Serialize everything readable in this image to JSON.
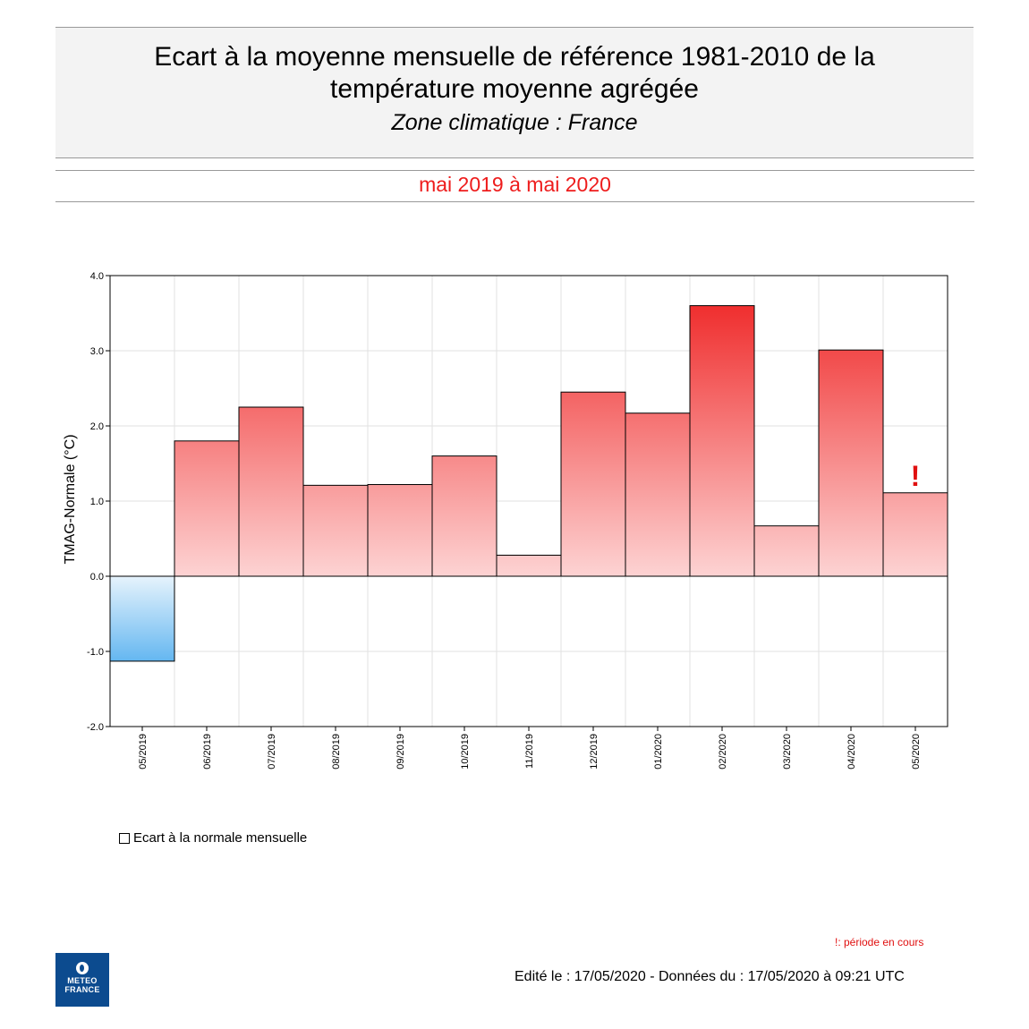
{
  "header": {
    "title_line1": "Ecart à la moyenne mensuelle de référence 1981-2010 de la",
    "title_line2": "température moyenne  agrégée",
    "subtitle": "Zone climatique : France"
  },
  "period": "mai 2019 à mai 2020",
  "chart_data": {
    "type": "bar",
    "ylabel": "TMAG-Normale (°C)",
    "ylim": [
      -2.0,
      4.0
    ],
    "yticks": [
      "4.0",
      "3.0",
      "2.0",
      "1.0",
      "0.0",
      "-1.0",
      "-2.0"
    ],
    "categories": [
      "05/2019",
      "06/2019",
      "07/2019",
      "08/2019",
      "09/2019",
      "10/2019",
      "11/2019",
      "12/2019",
      "01/2020",
      "02/2020",
      "03/2020",
      "04/2020",
      "05/2020"
    ],
    "series": [
      {
        "name": "Ecart à la normale mensuelle",
        "values": [
          -1.13,
          1.8,
          2.25,
          1.21,
          1.22,
          1.6,
          0.28,
          2.45,
          2.17,
          3.6,
          0.67,
          3.01,
          1.11
        ]
      }
    ],
    "marker": "!",
    "marker_category": "05/2020",
    "grid": true,
    "legend": "bottom-left",
    "colors": {
      "positive": "#ee1c1c",
      "negative": "#5cb3f0",
      "marker": "#e01010"
    }
  },
  "legend_label": "Ecart à la normale mensuelle",
  "note": "!: période en cours",
  "edited": "Edité le : 17/05/2020 - Données du : 17/05/2020 à 09:21 UTC",
  "logo": {
    "line1": "METEO",
    "line2": "FRANCE"
  }
}
